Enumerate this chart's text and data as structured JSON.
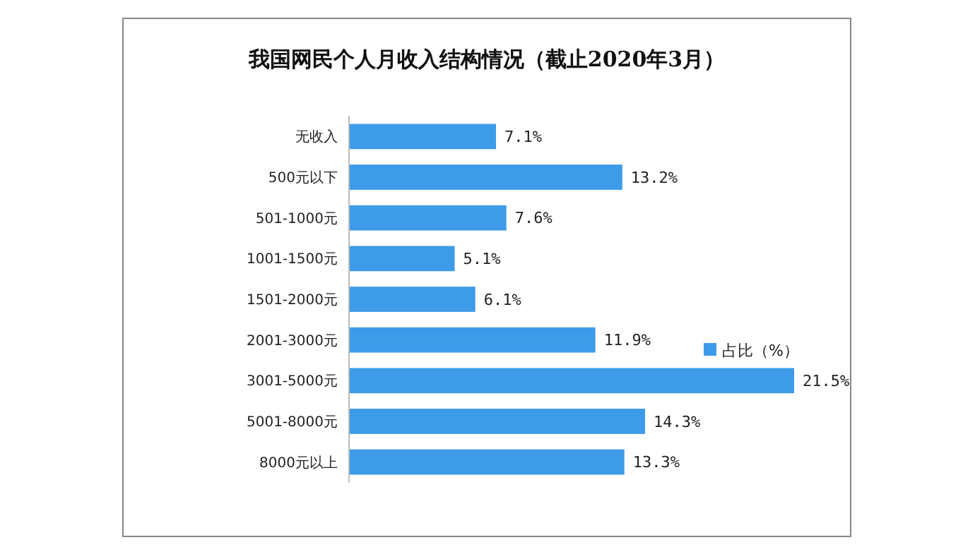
{
  "chart_data": {
    "type": "bar",
    "orientation": "horizontal",
    "title": "我国网民个人月收入结构情况（截止2020年3月）",
    "categories": [
      "无收入",
      "500元以下",
      "501-1000元",
      "1001-1500元",
      "1501-2000元",
      "2001-3000元",
      "3001-5000元",
      "5001-8000元",
      "8000元以上"
    ],
    "series": [
      {
        "name": "占比（%）",
        "color": "#3d9be9",
        "values": [
          7.1,
          13.2,
          7.6,
          5.1,
          6.1,
          11.9,
          21.5,
          14.3,
          13.3
        ],
        "value_labels": [
          "7.1%",
          "13.2%",
          "7.6%",
          "5.1%",
          "6.1%",
          "11.9%",
          "21.5%",
          "14.3%",
          "13.3%"
        ]
      }
    ],
    "legend": "right"
  }
}
